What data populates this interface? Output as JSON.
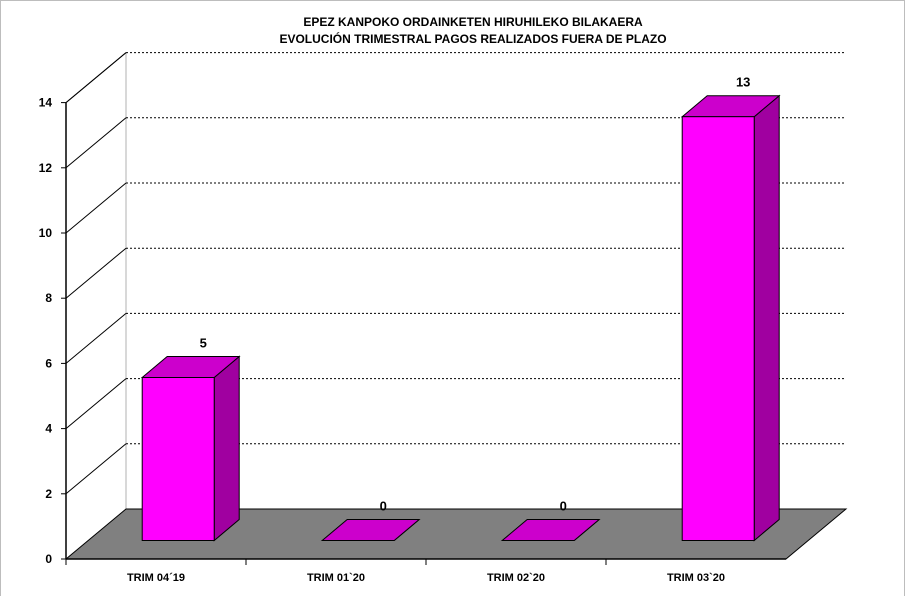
{
  "chart_data": {
    "type": "bar",
    "title": "EPEZ KANPOKO ORDAINKETEN HIRUHILEKO BILAKAERA",
    "subtitle": "EVOLUCIÓN TRIMESTRAL PAGOS REALIZADOS FUERA DE PLAZO",
    "categories": [
      "TRIM 04´19",
      "TRIM 01`20",
      "TRIM 02`20",
      "TRIM 03`20"
    ],
    "values": [
      5,
      0,
      0,
      13
    ],
    "data_labels": [
      "5",
      "0",
      "0",
      "13"
    ],
    "ylim": [
      0,
      14
    ],
    "yticks": [
      "0",
      "2",
      "4",
      "6",
      "8",
      "10",
      "12",
      "14"
    ],
    "xlabel": "",
    "ylabel": "",
    "grid": true,
    "legend": "none",
    "style": "3d-bar",
    "colors": {
      "bar_front": "#ff00ff",
      "bar_top": "#cc00cc",
      "bar_side": "#a000a0",
      "floor": "#808080",
      "grid": "#000000"
    }
  }
}
